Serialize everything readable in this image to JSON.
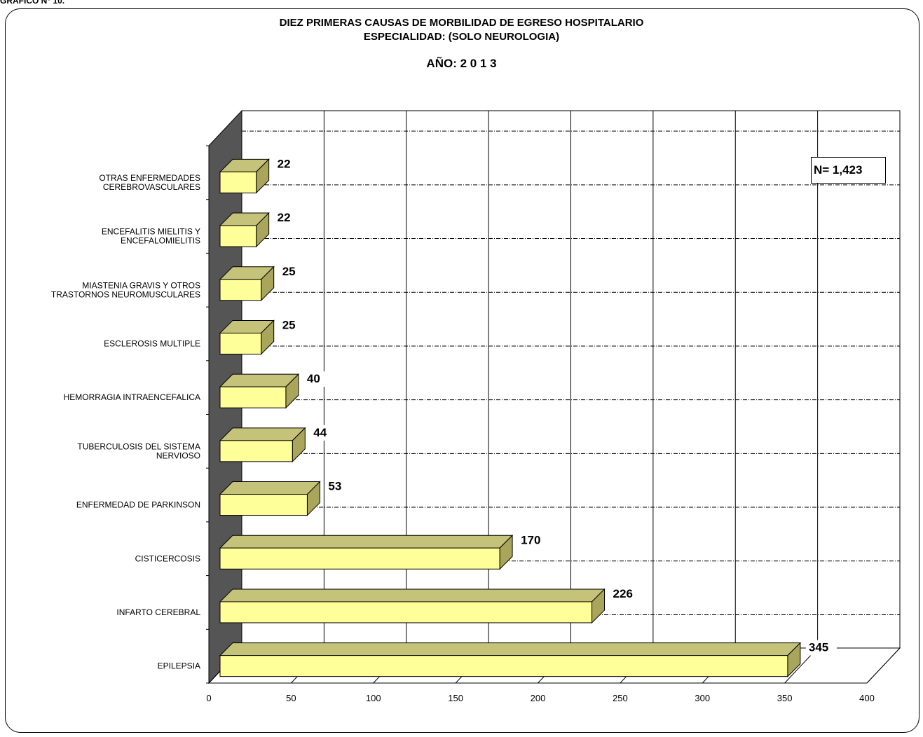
{
  "page_label": "GRAFICO N° 10.",
  "n_box": "N= 1,423",
  "chart_data": {
    "type": "bar",
    "orientation": "horizontal",
    "title": "DIEZ PRIMERAS CAUSAS DE MORBILIDAD DE EGRESO HOSPITALARIO",
    "subtitle": "ESPECIALIDAD: (SOLO NEUROLOGIA)",
    "year_label": "AÑO: 2 0 1 3",
    "categories": [
      "EPILEPSIA",
      "INFARTO CEREBRAL",
      "CISTICERCOSIS",
      "ENFERMEDAD DE PARKINSON",
      "TUBERCULOSIS DEL SISTEMA NERVIOSO",
      "HEMORRAGIA INTRAENCEFALICA",
      "ESCLEROSIS MULTIPLE",
      "MIASTENIA GRAVIS Y OTROS TRASTORNOS NEUROMUSCULARES",
      "ENCEFALITIS MIELITIS Y ENCEFALOMIELITIS",
      "OTRAS ENFERMEDADES CEREBROVASCULARES"
    ],
    "category_lines": [
      [
        "EPILEPSIA"
      ],
      [
        "INFARTO CEREBRAL"
      ],
      [
        "CISTICERCOSIS"
      ],
      [
        "ENFERMEDAD DE PARKINSON"
      ],
      [
        "TUBERCULOSIS DEL SISTEMA",
        "NERVIOSO"
      ],
      [
        "HEMORRAGIA INTRAENCEFALICA"
      ],
      [
        "ESCLEROSIS MULTIPLE"
      ],
      [
        "MIASTENIA GRAVIS Y OTROS",
        "TRASTORNOS NEUROMUSCULARES"
      ],
      [
        "ENCEFALITIS MIELITIS Y",
        "ENCEFALOMIELITIS"
      ],
      [
        "OTRAS ENFERMEDADES",
        "CEREBROVASCULARES"
      ]
    ],
    "values": [
      345,
      226,
      170,
      53,
      44,
      40,
      25,
      25,
      22,
      22
    ],
    "xlim": [
      0,
      400
    ],
    "xticks": [
      "0",
      "50",
      "100",
      "150",
      "200",
      "250",
      "300",
      "350",
      "400"
    ],
    "grid": true,
    "legend": "none",
    "colors": {
      "bar_front": "#ffff99",
      "bar_top": "#c5c27a",
      "bar_side": "#a9a55a",
      "wall": "#555555",
      "gridline": "#000000"
    }
  }
}
